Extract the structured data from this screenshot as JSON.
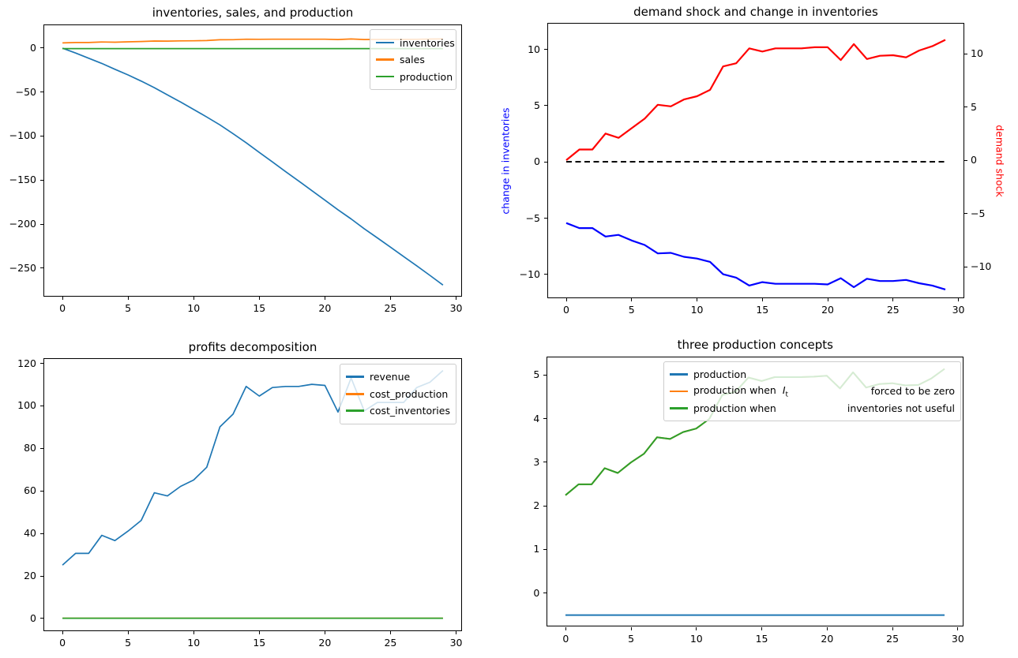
{
  "figure": {
    "background": "#ffffff"
  },
  "palette": {
    "mpl_blue": "#1f77b4",
    "mpl_orange": "#ff7f0e",
    "mpl_green": "#2ca02c",
    "pure_blue": "#0000ff",
    "pure_red": "#ff0000",
    "black": "#000000",
    "legend_border": "#cccccc"
  },
  "chart_data": [
    {
      "id": "inventories-sales-production",
      "type": "line",
      "title": "inventories, sales, and production",
      "x": [
        0,
        1,
        2,
        3,
        4,
        5,
        6,
        7,
        8,
        9,
        10,
        11,
        12,
        13,
        14,
        15,
        16,
        17,
        18,
        19,
        20,
        21,
        22,
        23,
        24,
        25,
        26,
        27,
        28,
        29
      ],
      "xlim": [
        -1.45,
        30.45
      ],
      "ylim": [
        -282.5,
        26.9
      ],
      "xticks": [
        0,
        5,
        10,
        15,
        20,
        25,
        30
      ],
      "yticks": [
        0,
        -50,
        -100,
        -150,
        -200,
        -250
      ],
      "grid": false,
      "legend": {
        "position": "upper right",
        "items": [
          {
            "label": "inventories",
            "color": "#1f77b4"
          },
          {
            "label": "sales",
            "color": "#ff7f0e"
          },
          {
            "label": "production",
            "color": "#2ca02c"
          }
        ]
      },
      "series": [
        {
          "name": "inventories",
          "color": "#1f77b4",
          "values": [
            0,
            -5.5,
            -11.4,
            -17.3,
            -23.9,
            -30.4,
            -37.4,
            -44.8,
            -53,
            -61.1,
            -69.5,
            -78.1,
            -87,
            -97,
            -107.3,
            -118.3,
            -129,
            -139.9,
            -150.7,
            -161.6,
            -172.4,
            -183.3,
            -193.7,
            -204.8,
            -215.2,
            -225.8,
            -236.4,
            -246.9,
            -257.7,
            -268.7
          ]
        },
        {
          "name": "sales",
          "color": "#ff7f0e",
          "values": [
            6,
            6.4,
            6.4,
            7,
            6.8,
            7.2,
            7.6,
            8.1,
            8,
            8.3,
            8.4,
            8.6,
            9.5,
            9.6,
            10.2,
            10.1,
            10.2,
            10.2,
            10.2,
            10.2,
            10.2,
            9.8,
            10.4,
            9.8,
            9.9,
            9.9,
            9.9,
            10.1,
            10.3,
            10.5
          ]
        },
        {
          "name": "production",
          "color": "#2ca02c",
          "value_const": -0.5
        }
      ]
    },
    {
      "id": "demand-shock-change-in-inventories",
      "type": "line",
      "title": "demand shock and change in inventories",
      "ylabel_left": {
        "text": "change in inventories",
        "color": "#0000ff"
      },
      "ylabel_right": {
        "text": "demand shock",
        "color": "#ff0000"
      },
      "x": [
        0,
        1,
        2,
        3,
        4,
        5,
        6,
        7,
        8,
        9,
        10,
        11,
        12,
        13,
        14,
        15,
        16,
        17,
        18,
        19,
        20,
        21,
        22,
        23,
        24,
        25,
        26,
        27,
        28,
        29
      ],
      "xlim": [
        -1.45,
        30.45
      ],
      "ylim": [
        -12.13,
        12.34
      ],
      "ylim_right": [
        -12.96,
        12.89
      ],
      "xticks": [
        0,
        5,
        10,
        15,
        20,
        25,
        30
      ],
      "yticks": [
        10,
        5,
        0,
        -5,
        -10
      ],
      "yticks_right": [
        10,
        5,
        0,
        -5,
        -10
      ],
      "grid": false,
      "legend": null,
      "series": [
        {
          "name": "zero-reference",
          "color": "#000000",
          "style": "dashed",
          "value_const": 0
        },
        {
          "name": "change in inventories",
          "color": "#0000ff",
          "values": [
            -5.45,
            -5.9,
            -5.9,
            -6.65,
            -6.5,
            -7,
            -7.4,
            -8.15,
            -8.1,
            -8.45,
            -8.6,
            -8.9,
            -10,
            -10.3,
            -11,
            -10.7,
            -10.85,
            -10.85,
            -10.85,
            -10.85,
            -10.9,
            -10.35,
            -11.15,
            -10.4,
            -10.6,
            -10.6,
            -10.5,
            -10.8,
            -11,
            -11.35
          ]
        },
        {
          "name": "demand shock",
          "color": "#ff0000",
          "axis": "right",
          "values": [
            0,
            1,
            1,
            2.5,
            2.1,
            3,
            3.9,
            5.2,
            5.05,
            5.7,
            6,
            6.6,
            8.8,
            9.1,
            10.5,
            10.2,
            10.5,
            10.5,
            10.5,
            10.6,
            10.6,
            9.4,
            10.9,
            9.5,
            9.8,
            9.85,
            9.65,
            10.3,
            10.7,
            11.3
          ]
        }
      ]
    },
    {
      "id": "profits-decomposition",
      "type": "line",
      "title": "profits decomposition",
      "x": [
        0,
        1,
        2,
        3,
        4,
        5,
        6,
        7,
        8,
        9,
        10,
        11,
        12,
        13,
        14,
        15,
        16,
        17,
        18,
        19,
        20,
        21,
        22,
        23,
        24,
        25,
        26,
        27,
        28,
        29
      ],
      "xlim": [
        -1.45,
        30.45
      ],
      "ylim": [
        -5.8,
        122.3
      ],
      "xticks": [
        0,
        5,
        10,
        15,
        20,
        25,
        30
      ],
      "yticks": [
        0,
        20,
        40,
        60,
        80,
        100,
        120
      ],
      "grid": false,
      "legend": {
        "position": "upper right",
        "items": [
          {
            "label": "revenue",
            "color": "#1f77b4"
          },
          {
            "label": "cost_production",
            "color": "#ff7f0e"
          },
          {
            "label": "cost_inventories",
            "color": "#2ca02c"
          }
        ]
      },
      "series": [
        {
          "name": "revenue",
          "color": "#1f77b4",
          "values": [
            25,
            30.5,
            30.5,
            39,
            36.5,
            41,
            46,
            59,
            57.5,
            62,
            65,
            71,
            90,
            96,
            109,
            104.5,
            108.5,
            109,
            109,
            110,
            109.5,
            97,
            113,
            97.5,
            101.5,
            101.5,
            101.5,
            108.5,
            111,
            116.5
          ]
        },
        {
          "name": "cost_production",
          "color": "#ff7f0e",
          "value_const": 0
        },
        {
          "name": "cost_inventories",
          "color": "#2ca02c",
          "value_const": 0
        }
      ]
    },
    {
      "id": "three-production-concepts",
      "type": "line",
      "title": "three production concepts",
      "x": [
        0,
        1,
        2,
        3,
        4,
        5,
        6,
        7,
        8,
        9,
        10,
        11,
        12,
        13,
        14,
        15,
        16,
        17,
        18,
        19,
        20,
        21,
        22,
        23,
        24,
        25,
        26,
        27,
        28,
        29
      ],
      "xlim": [
        -1.45,
        30.45
      ],
      "ylim": [
        -0.775,
        5.43
      ],
      "xticks": [
        0,
        5,
        10,
        15,
        20,
        25,
        30
      ],
      "yticks": [
        0,
        1,
        2,
        3,
        4,
        5
      ],
      "grid": false,
      "legend": {
        "position": "upper center-right wide",
        "items": [
          {
            "label": "production",
            "color": "#1f77b4"
          },
          {
            "label": "production when  ",
            "math": {
              "base": "I",
              "sub": "t"
            },
            "label_right": "forced to be zero",
            "color": "#ff7f0e"
          },
          {
            "label": "production when",
            "label_right": "inventories not useful",
            "color": "#2ca02c"
          }
        ]
      },
      "series": [
        {
          "name": "production",
          "color": "#1f77b4",
          "value_const": -0.5
        },
        {
          "name": "production when I_t forced to be zero",
          "color": "#ff7f0e",
          "values": [
            2.25,
            2.5,
            2.5,
            2.87,
            2.76,
            3,
            3.2,
            3.58,
            3.54,
            3.7,
            3.78,
            4,
            4.55,
            4.62,
            4.95,
            4.87,
            4.96,
            4.96,
            4.96,
            4.97,
            4.99,
            4.7,
            5.07,
            4.72,
            4.8,
            4.82,
            4.77,
            4.78,
            4.93,
            5.15
          ]
        },
        {
          "name": "production when inventories not useful",
          "color": "#2ca02c",
          "values": [
            2.25,
            2.5,
            2.5,
            2.87,
            2.76,
            3,
            3.2,
            3.58,
            3.54,
            3.7,
            3.78,
            4,
            4.55,
            4.62,
            4.95,
            4.87,
            4.96,
            4.96,
            4.96,
            4.97,
            4.99,
            4.7,
            5.07,
            4.72,
            4.8,
            4.82,
            4.77,
            4.78,
            4.93,
            5.15
          ]
        }
      ]
    }
  ]
}
